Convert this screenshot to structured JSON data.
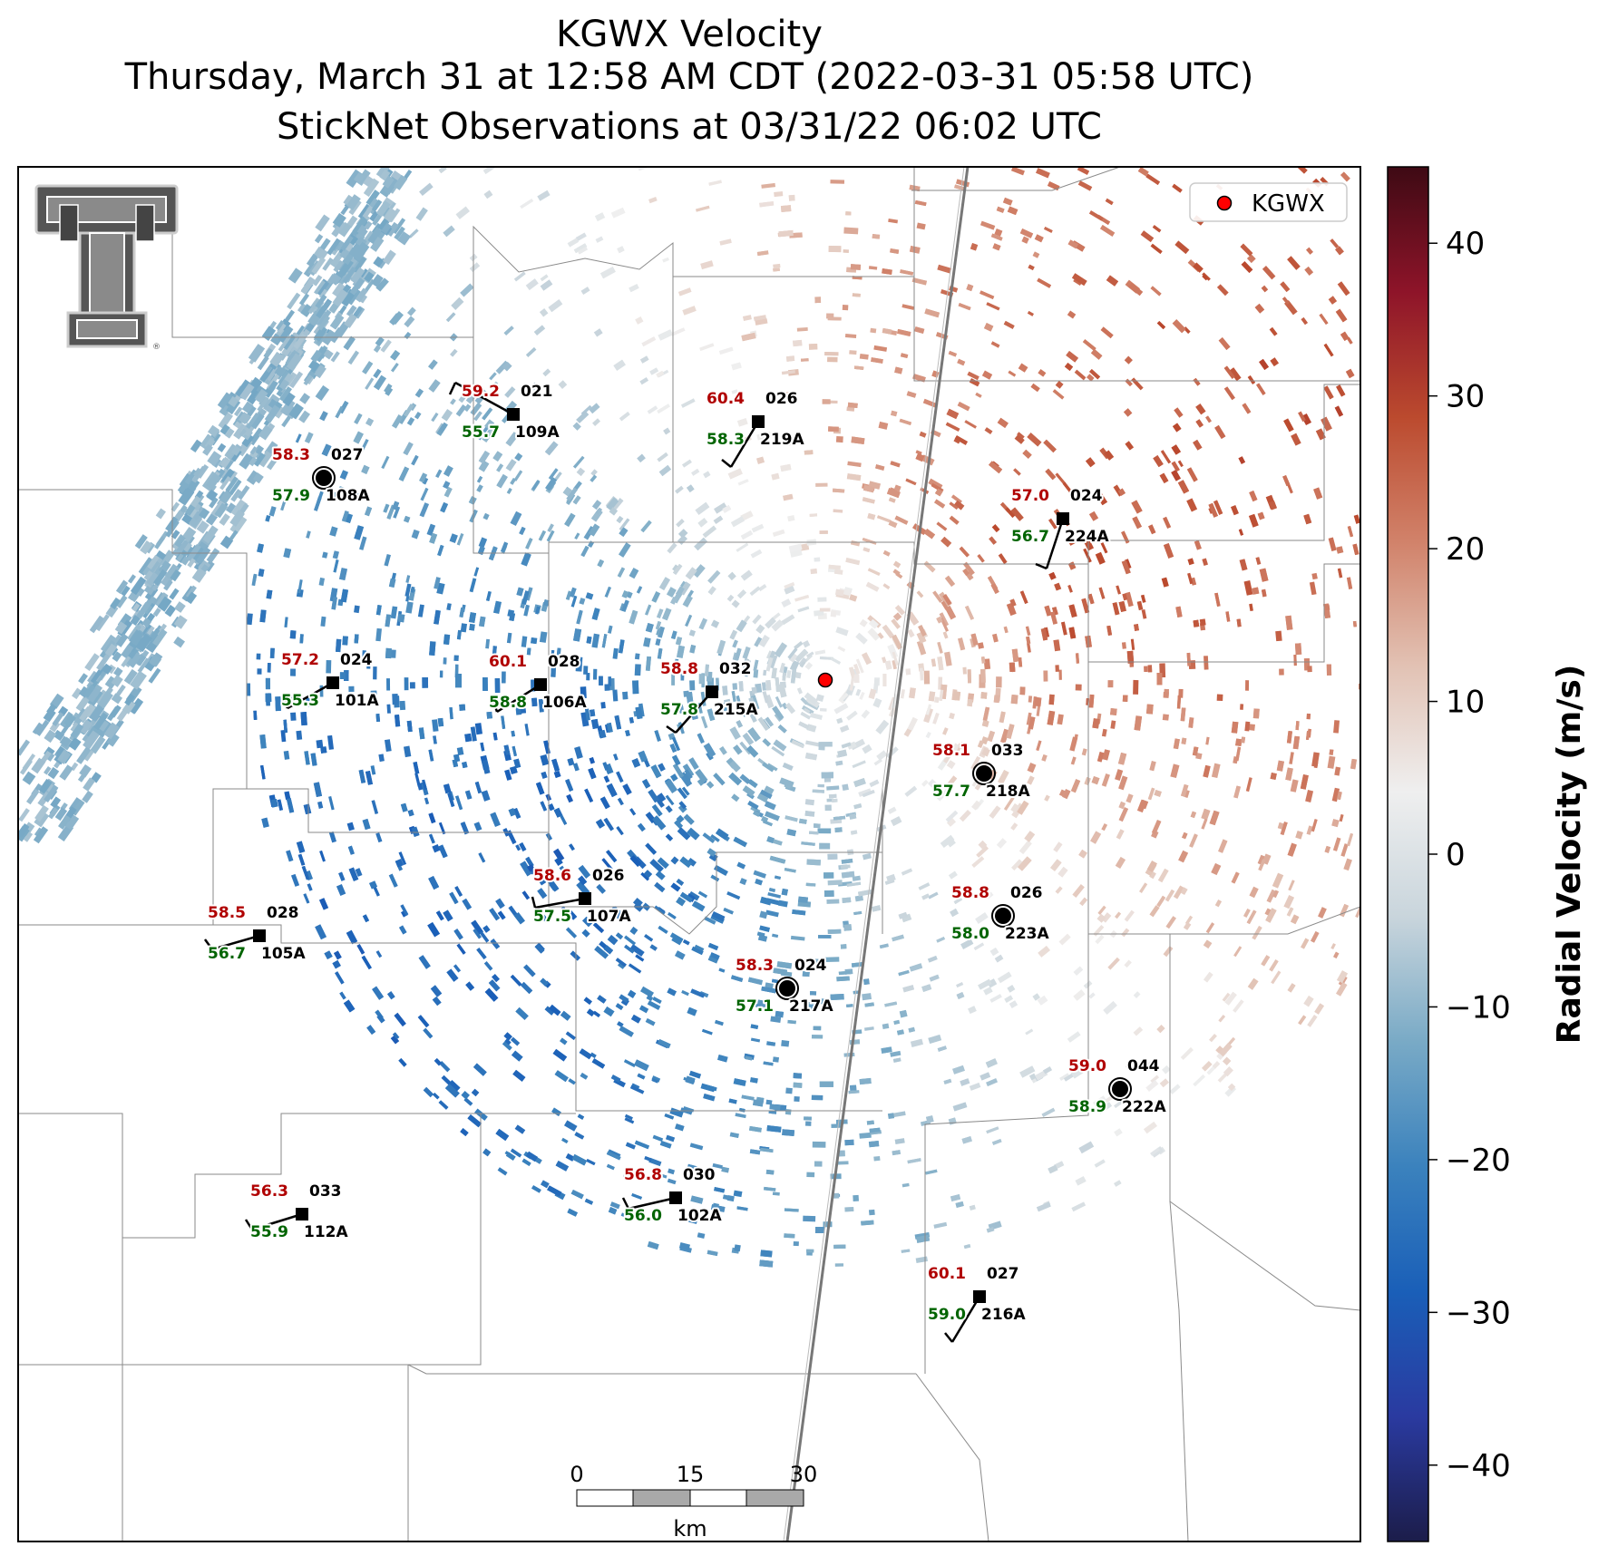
{
  "title": {
    "line1": "KGWX Velocity",
    "line2": "Thursday, March 31 at 12:58 AM CDT (2022-03-31 05:58 UTC)",
    "line3": "StickNet Observations at 03/31/22 06:02 UTC"
  },
  "legend": {
    "label": "KGWX",
    "marker_color": "#ff0000"
  },
  "radar": {
    "name": "KGWX"
  },
  "colorbar": {
    "title": "Radial Velocity (m/s)",
    "ticks": [
      "40",
      "30",
      "20",
      "10",
      "0",
      "−10",
      "−20",
      "−30",
      "−40"
    ],
    "range": [
      -45,
      45
    ],
    "colors": [
      "#1c1d4a",
      "#2a3aa0",
      "#1a5fb8",
      "#3b82bd",
      "#79aac6",
      "#c9d5dc",
      "#efefef",
      "#e2c2b4",
      "#d1826a",
      "#bb4a2e",
      "#8e1429",
      "#3e0a14"
    ]
  },
  "scale_bar": {
    "ticks": [
      "0",
      "15",
      "30"
    ],
    "unit": "km"
  },
  "stations": [
    {
      "id": "108A",
      "temp": "58.3",
      "dew": "57.9",
      "wind": "027",
      "type": "calm"
    },
    {
      "id": "109A",
      "temp": "59.2",
      "dew": "55.7",
      "wind": "021",
      "type": "barb"
    },
    {
      "id": "219A",
      "temp": "60.4",
      "dew": "58.3",
      "wind": "026",
      "type": "barb"
    },
    {
      "id": "224A",
      "temp": "57.0",
      "dew": "56.7",
      "wind": "024",
      "type": "barb"
    },
    {
      "id": "101A",
      "temp": "57.2",
      "dew": "55.3",
      "wind": "024",
      "type": "barb"
    },
    {
      "id": "106A",
      "temp": "60.1",
      "dew": "58.8",
      "wind": "028",
      "type": "barb"
    },
    {
      "id": "215A",
      "temp": "58.8",
      "dew": "57.8",
      "wind": "032",
      "type": "barb"
    },
    {
      "id": "218A",
      "temp": "58.1",
      "dew": "57.7",
      "wind": "033",
      "type": "calm"
    },
    {
      "id": "107A",
      "temp": "58.6",
      "dew": "57.5",
      "wind": "026",
      "type": "barb"
    },
    {
      "id": "105A",
      "temp": "58.5",
      "dew": "56.7",
      "wind": "028",
      "type": "barb"
    },
    {
      "id": "223A",
      "temp": "58.8",
      "dew": "58.0",
      "wind": "026",
      "type": "calm"
    },
    {
      "id": "217A",
      "temp": "58.3",
      "dew": "57.1",
      "wind": "024",
      "type": "calm"
    },
    {
      "id": "222A",
      "temp": "59.0",
      "dew": "58.9",
      "wind": "044",
      "type": "calm"
    },
    {
      "id": "102A",
      "temp": "56.8",
      "dew": "56.0",
      "wind": "030",
      "type": "barb"
    },
    {
      "id": "112A",
      "temp": "56.3",
      "dew": "55.9",
      "wind": "033",
      "type": "barb"
    },
    {
      "id": "216A",
      "temp": "60.1",
      "dew": "59.0",
      "wind": "027",
      "type": "barb"
    }
  ]
}
